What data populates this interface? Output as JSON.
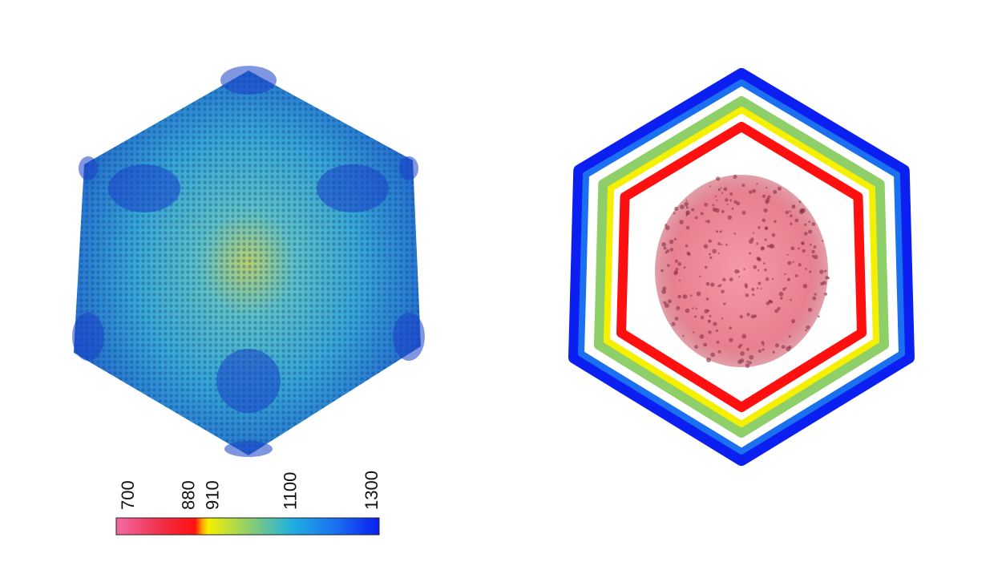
{
  "colorbar": {
    "ticks": [
      "700",
      "880",
      "910",
      "1100",
      "1300"
    ],
    "tick_values": [
      700,
      880,
      910,
      1100,
      1300
    ],
    "range": [
      700,
      1300
    ],
    "stops": [
      {
        "value": 700,
        "color": "#f46aa8"
      },
      {
        "value": 800,
        "color": "#f0304a"
      },
      {
        "value": 880,
        "color": "#ff1010"
      },
      {
        "value": 895,
        "color": "#ff9900"
      },
      {
        "value": 910,
        "color": "#f5f000"
      },
      {
        "value": 1000,
        "color": "#8fcf6a"
      },
      {
        "value": 1100,
        "color": "#20b0e0"
      },
      {
        "value": 1200,
        "color": "#1a70f0"
      },
      {
        "value": 1300,
        "color": "#0a1ff0"
      }
    ]
  },
  "colors": {
    "surface_blue": "#2a8fd8",
    "surface_cyan": "#3fb8d8",
    "vertex_blue": "#1a40c8",
    "core_pink": "#f08a9a"
  }
}
